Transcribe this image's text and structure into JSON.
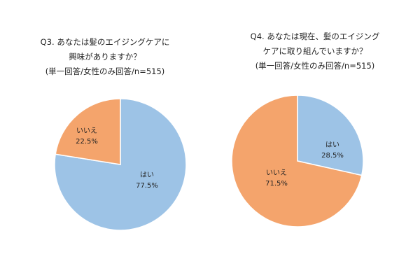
{
  "chart_data": [
    {
      "type": "pie",
      "title_lines": [
        "Q3. あなたは髪のエイジングケアに",
        "興味がありますか？",
        "(単一回答/女性のみ回答/n=515)"
      ],
      "categories": [
        "はい",
        "いいえ"
      ],
      "values": [
        77.5,
        22.5
      ],
      "value_labels": [
        "77.5%",
        "22.5%"
      ],
      "colors": [
        "#9dc3e6",
        "#f4a46c"
      ],
      "start": "12 o'clock",
      "direction": "clockwise"
    },
    {
      "type": "pie",
      "title_lines": [
        "Q4. あなたは現在、髪のエイジング",
        "ケアに取り組んでいますか？",
        "(単一回答/女性のみ回答/n=515)"
      ],
      "categories": [
        "はい",
        "いいえ"
      ],
      "values": [
        28.5,
        71.5
      ],
      "value_labels": [
        "28.5%",
        "71.5%"
      ],
      "colors": [
        "#9dc3e6",
        "#f4a46c"
      ],
      "start": "12 o'clock",
      "direction": "clockwise"
    }
  ]
}
